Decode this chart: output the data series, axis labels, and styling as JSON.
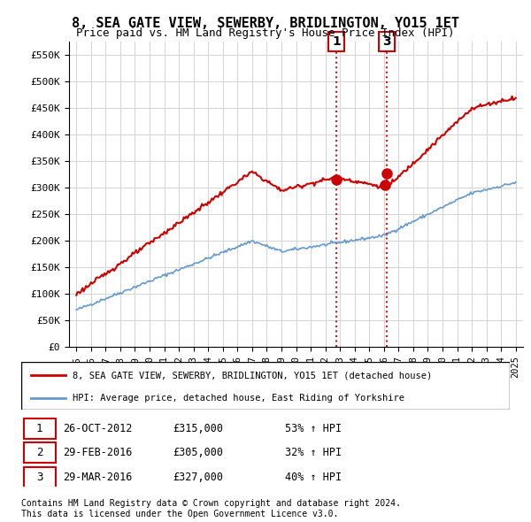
{
  "title": "8, SEA GATE VIEW, SEWERBY, BRIDLINGTON, YO15 1ET",
  "subtitle": "Price paid vs. HM Land Registry's House Price Index (HPI)",
  "legend_line1": "8, SEA GATE VIEW, SEWERBY, BRIDLINGTON, YO15 1ET (detached house)",
  "legend_line2": "HPI: Average price, detached house, East Riding of Yorkshire",
  "red_color": "#cc0000",
  "blue_color": "#6699cc",
  "table": [
    {
      "num": "1",
      "date": "26-OCT-2012",
      "price": "£315,000",
      "hpi": "53% ↑ HPI"
    },
    {
      "num": "2",
      "date": "29-FEB-2016",
      "price": "£305,000",
      "hpi": "32% ↑ HPI"
    },
    {
      "num": "3",
      "date": "29-MAR-2016",
      "price": "£327,000",
      "hpi": "40% ↑ HPI"
    }
  ],
  "footnote1": "Contains HM Land Registry data © Crown copyright and database right 2024.",
  "footnote2": "This data is licensed under the Open Government Licence v3.0.",
  "ylim": [
    0,
    575000
  ],
  "yticks": [
    0,
    50000,
    100000,
    150000,
    200000,
    250000,
    300000,
    350000,
    400000,
    450000,
    500000,
    550000
  ],
  "xlim_start": 1994.5,
  "xlim_end": 2025.5,
  "sale1_year": 2012.75,
  "sale1_price": 315000,
  "sale2_year": 2016.08,
  "sale2_price": 305000,
  "sale3_year": 2016.21,
  "sale3_price": 327000
}
